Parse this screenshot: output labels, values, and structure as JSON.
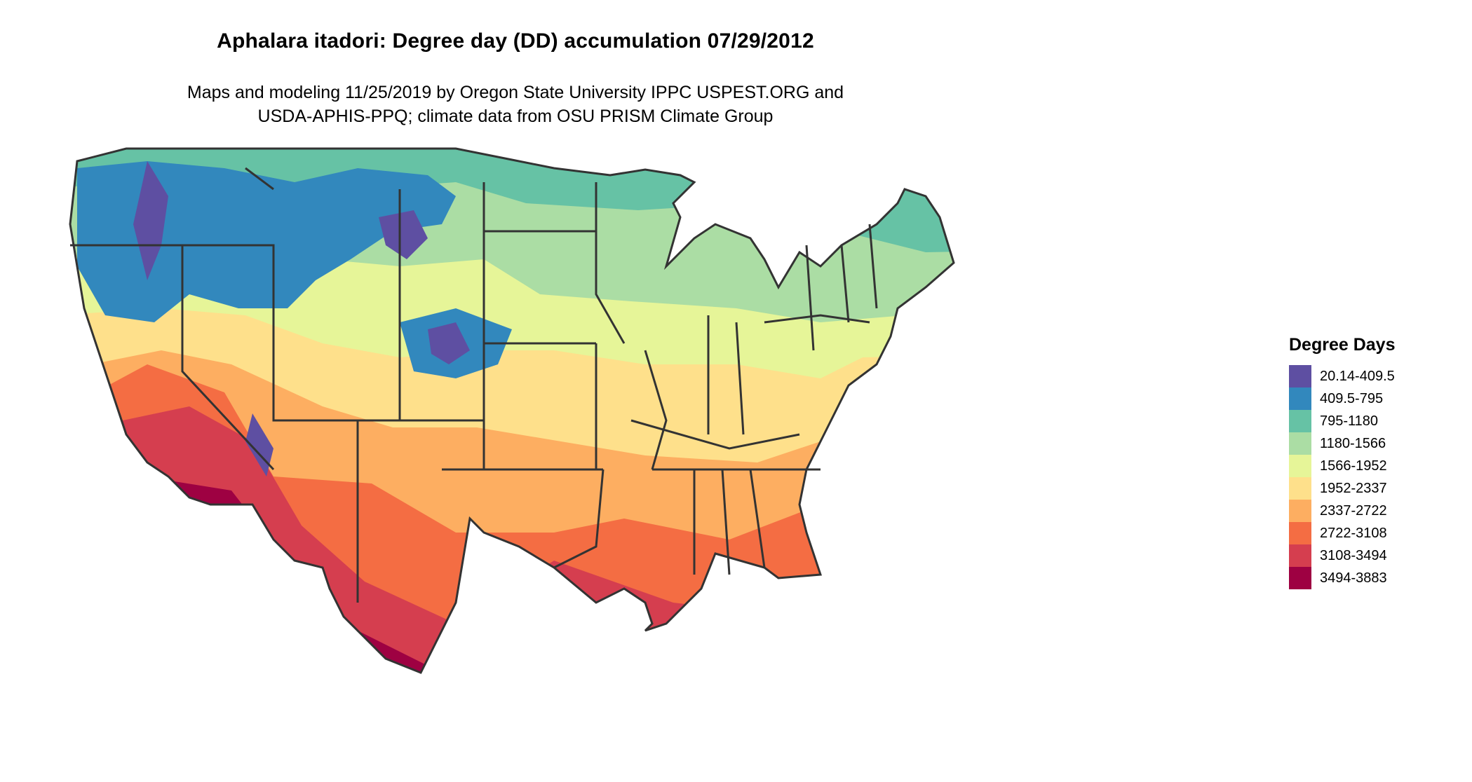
{
  "title": "Aphalara itadori: Degree day (DD) accumulation 07/29/2012",
  "subtitle_line1": "Maps and modeling 11/25/2019 by Oregon State University IPPC USPEST.ORG and",
  "subtitle_line2": "USDA-APHIS-PPQ; climate data from OSU PRISM Climate Group",
  "legend": {
    "title": "Degree Days",
    "items": [
      {
        "label": "20.14-409.5",
        "color": "#5e4fa2"
      },
      {
        "label": "409.5-795",
        "color": "#3288bd"
      },
      {
        "label": "795-1180",
        "color": "#66c2a5"
      },
      {
        "label": "1180-1566",
        "color": "#abdda4"
      },
      {
        "label": "1566-1952",
        "color": "#e6f598"
      },
      {
        "label": "1952-2337",
        "color": "#fee08b"
      },
      {
        "label": "2337-2722",
        "color": "#fdae61"
      },
      {
        "label": "2722-3108",
        "color": "#f46d43"
      },
      {
        "label": "3108-3494",
        "color": "#d53e4f"
      },
      {
        "label": "3494-3883",
        "color": "#9e0142"
      }
    ]
  },
  "map": {
    "region": "Contiguous United States",
    "border_color": "#333333"
  }
}
